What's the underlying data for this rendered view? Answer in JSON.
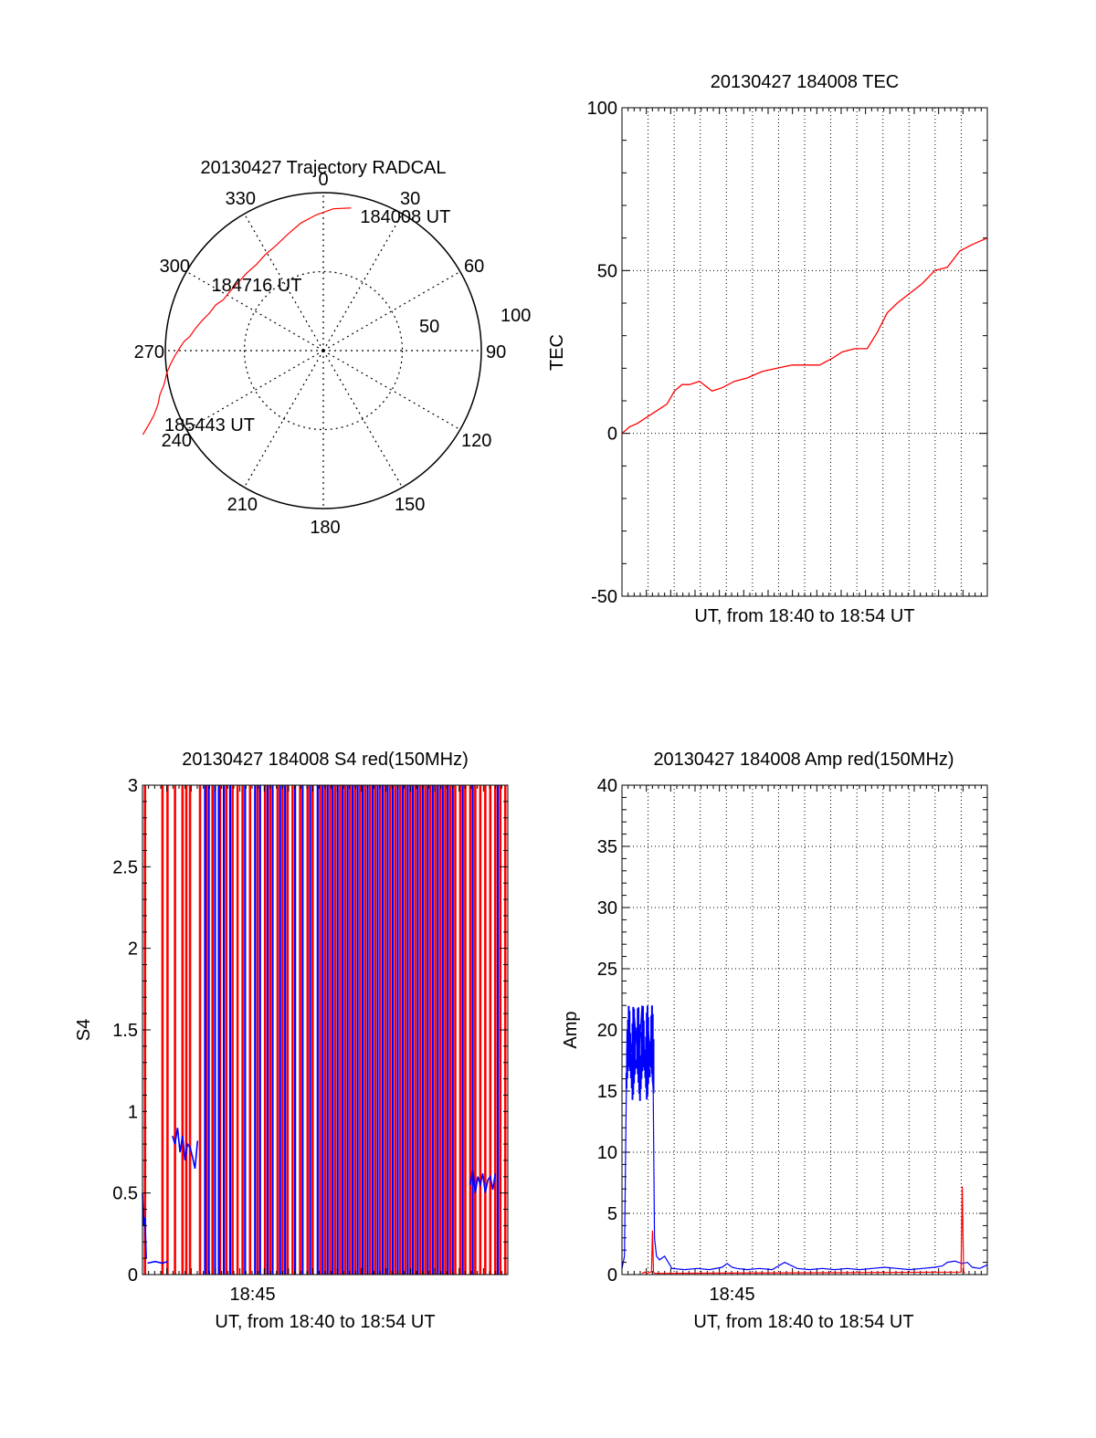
{
  "colors": {
    "axis": "#000000",
    "grid": "#000000",
    "red": "#ff0000",
    "blue": "#0000ff",
    "background": "#ffffff"
  },
  "chart_data": [
    {
      "id": "trajectory",
      "type": "polar",
      "title": "20130427 Trajectory RADCAL",
      "r_max": 100,
      "inner_ring": 50,
      "azimuth_labels": [
        "0",
        "30",
        "60",
        "90",
        "120",
        "150",
        "180",
        "210",
        "240",
        "270",
        "300",
        "330"
      ],
      "radius_labels": [
        "50",
        "100"
      ],
      "series": [
        {
          "color": "red",
          "points": [
            [
              11,
              92
            ],
            [
              4,
              90
            ],
            [
              -3,
              86
            ],
            [
              -10,
              82
            ],
            [
              -17,
              77
            ],
            [
              -24,
              73
            ],
            [
              -31,
              71
            ],
            [
              -38,
              69
            ],
            [
              -45,
              69
            ],
            [
              -52,
              69
            ],
            [
              -58,
              70
            ],
            [
              -63,
              71
            ],
            [
              -67,
              74
            ],
            [
              -72,
              76
            ],
            [
              -76,
              79
            ],
            [
              -80,
              82
            ],
            [
              -84,
              85
            ],
            [
              -86,
              88
            ],
            [
              -89,
              91
            ],
            [
              -92,
              94
            ],
            [
              -95,
              97
            ],
            [
              -98,
              100
            ],
            [
              -102,
              103
            ],
            [
              -105,
              107
            ],
            [
              -108,
              110
            ],
            [
              -111,
              115
            ],
            [
              -113,
              120
            ],
            [
              -115,
              126
            ]
          ]
        }
      ],
      "annotations": [
        {
          "text": "184008 UT",
          "az": 11,
          "r": 92
        },
        {
          "text": "184716 UT",
          "az": -69,
          "r": 74
        },
        {
          "text": "185443 UT",
          "az": -114,
          "r": 112
        }
      ]
    },
    {
      "id": "tec",
      "type": "line",
      "title": "20130427 184008 TEC",
      "xlabel": "UT, from 18:40 to 18:54 UT",
      "ylabel": "TEC",
      "xlim": [
        0,
        14.6
      ],
      "ylim": [
        -50,
        100
      ],
      "yticks": [
        -50,
        0,
        50,
        100
      ],
      "series": [
        {
          "color": "red",
          "x": [
            0,
            0.3,
            0.6,
            1,
            1.4,
            1.8,
            2.1,
            2.4,
            2.7,
            3.1,
            3.6,
            4,
            4.5,
            5,
            5.6,
            6.2,
            6.8,
            7.4,
            7.9,
            8.4,
            8.8,
            9.3,
            9.8,
            10.2,
            10.6,
            11,
            11.5,
            12,
            12.5,
            13,
            13.5,
            14,
            14.6
          ],
          "y": [
            0,
            2,
            3,
            5,
            7,
            9,
            13,
            15,
            15,
            16,
            13,
            14,
            16,
            17,
            19,
            20,
            21,
            21,
            21,
            23,
            25,
            26,
            26,
            31,
            37,
            40,
            43,
            46,
            50,
            51,
            56,
            58,
            60
          ]
        }
      ]
    },
    {
      "id": "s4",
      "type": "line",
      "title": "20130427 184008 S4 red(150MHz)",
      "xlabel": "UT, from 18:40 to 18:54 UT",
      "ylabel": "S4",
      "xlim": [
        0,
        14.6
      ],
      "ylim": [
        0,
        3
      ],
      "yticks": [
        0,
        0.5,
        1,
        1.5,
        2,
        2.5,
        3
      ],
      "yticklabels": [
        "0",
        "0.5",
        "1",
        "1.5",
        "2",
        "2.5",
        "3"
      ],
      "xticks": [
        4.4
      ],
      "xticklabels": [
        "18:45"
      ],
      "red_spikes_x": [
        0.1,
        0.8,
        1,
        1.3,
        1.6,
        1.75,
        1.9,
        2.3,
        2.55,
        2.8,
        3.1,
        3.35,
        3.6,
        3.8,
        4,
        4.3,
        4.6,
        4.9,
        5.1,
        5.4,
        5.6,
        5.8,
        6,
        6.3,
        6.6,
        6.8,
        7.1,
        7.3,
        7.5,
        7.7,
        7.9,
        8.1,
        8.3,
        8.5,
        8.7,
        8.9,
        9.1,
        9.3,
        9.5,
        9.7,
        9.9,
        10.1,
        10.3,
        10.5,
        10.7,
        10.9,
        11.1,
        11.3,
        11.5,
        11.7,
        11.9,
        12.1,
        12.3,
        12.5,
        12.7,
        12.9,
        13.1,
        13.3,
        13.5,
        13.7,
        13.9,
        14.1,
        14.3,
        14.5
      ],
      "blue_spikes_x": [
        2.5,
        2.65,
        2.9,
        3.05,
        3.25,
        3.5,
        4.1,
        4.5,
        4.7,
        5,
        5.2,
        5.5,
        5.7,
        6.1,
        6.4,
        6.7,
        7,
        7.2,
        7.4,
        7.6,
        7.8,
        8,
        8.2,
        8.4,
        8.6,
        8.8,
        9,
        9.2,
        9.4,
        9.6,
        9.8,
        10,
        10.2,
        10.4,
        10.6,
        10.8,
        11,
        11.2,
        11.4,
        11.6,
        11.8,
        12,
        12.2,
        12.4,
        12.8,
        13.2,
        14.2
      ],
      "blue_series": [
        {
          "x": [
            0,
            0.05,
            0.1,
            0.15
          ],
          "y": [
            0.5,
            0.3,
            0.35,
            0.1
          ]
        },
        {
          "x": [
            0.2,
            0.5,
            0.8,
            1.0
          ],
          "y": [
            0.07,
            0.08,
            0.07,
            0.08
          ]
        },
        {
          "x": [
            1.2,
            1.3,
            1.4,
            1.5,
            1.6,
            1.7,
            1.8,
            1.9,
            2.0,
            2.1,
            2.2
          ],
          "y": [
            0.85,
            0.8,
            0.9,
            0.75,
            0.85,
            0.7,
            0.8,
            0.78,
            0.72,
            0.65,
            0.82
          ]
        },
        {
          "x": [
            13.1,
            13.2,
            13.3,
            13.4,
            13.5,
            13.6,
            13.7,
            13.8,
            13.9,
            14.0,
            14.1
          ],
          "y": [
            0.55,
            0.65,
            0.5,
            0.6,
            0.55,
            0.62,
            0.5,
            0.58,
            0.6,
            0.52,
            0.62
          ]
        }
      ]
    },
    {
      "id": "amp",
      "type": "line",
      "title": "20130427 184008 Amp red(150MHz)",
      "xlabel": "UT, from 18:40 to 18:54 UT",
      "ylabel": "Amp",
      "xlim": [
        0,
        14.6
      ],
      "ylim": [
        0,
        40
      ],
      "yticks": [
        0,
        5,
        10,
        15,
        20,
        25,
        30,
        35,
        40
      ],
      "xticks": [
        4.4
      ],
      "xticklabels": [
        "18:45"
      ],
      "series": [
        {
          "color": "blue",
          "x": [
            0,
            0.05,
            0.1,
            0.2,
            0.35,
            0.5,
            0.65,
            0.8,
            0.95,
            1.05,
            1.15,
            1.25,
            1.3,
            1.38,
            1.5,
            1.7,
            2,
            2.5,
            3,
            3.5,
            4,
            4.2,
            4.4,
            4.6,
            5,
            5.5,
            6,
            6.5,
            7,
            7.5,
            8,
            8.5,
            9,
            9.5,
            10,
            10.5,
            11,
            11.5,
            12,
            12.5,
            12.8,
            13,
            13.3,
            13.6,
            13.8,
            14,
            14.3,
            14.6
          ],
          "y": [
            0.5,
            1,
            1.5,
            20,
            18,
            21,
            17,
            22,
            16,
            20,
            18,
            15,
            3,
            1.5,
            1.2,
            1.5,
            0.5,
            0.4,
            0.5,
            0.4,
            0.6,
            0.9,
            0.6,
            0.5,
            0.4,
            0.5,
            0.4,
            1,
            0.5,
            0.4,
            0.5,
            0.4,
            0.5,
            0.4,
            0.5,
            0.6,
            0.5,
            0.4,
            0.5,
            0.6,
            0.7,
            1,
            1.1,
            0.9,
            1,
            0.6,
            0.5,
            0.8
          ]
        },
        {
          "color": "red",
          "x": [
            0.8,
            0.9,
            1.0,
            1.1,
            1.18,
            1.22,
            1.26,
            1.3,
            13.55,
            13.6,
            13.65,
            13.7
          ],
          "y": [
            0.1,
            0.2,
            0.1,
            0.2,
            0.2,
            3.6,
            0.2,
            0.1,
            0.2,
            7.2,
            0.3,
            0.1
          ]
        }
      ]
    }
  ]
}
